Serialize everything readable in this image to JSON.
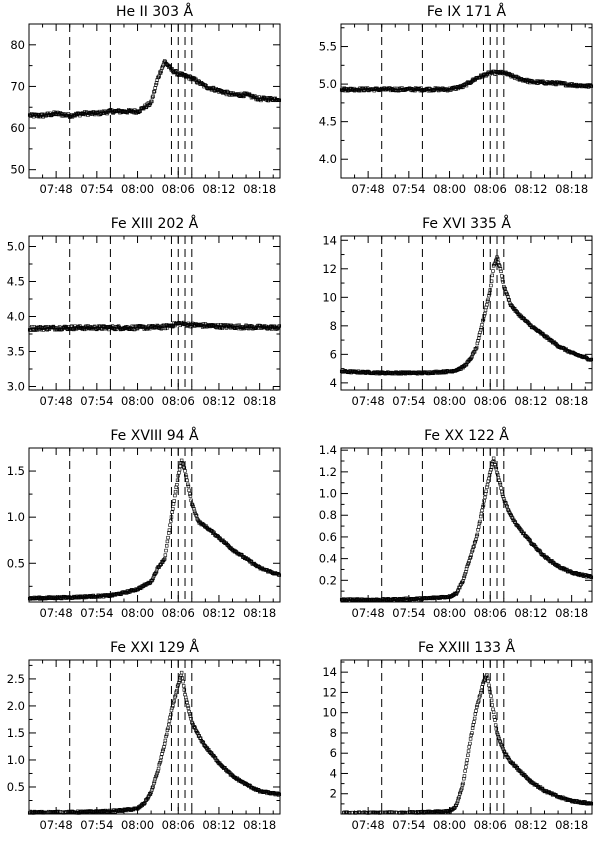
{
  "chart_data": [
    {
      "type": "scatter",
      "title": "He II 303 Å",
      "x_ticks": [
        "07:48",
        "07:54",
        "08:00",
        "08:06",
        "08:12",
        "08:18"
      ],
      "xlim": [
        "07:44",
        "08:21"
      ],
      "ylim": [
        48,
        85
      ],
      "y_ticks": [
        50,
        60,
        70,
        80
      ],
      "y_tick_labels": [
        "50",
        "60",
        "70",
        "80"
      ],
      "dashed_lines": [
        "07:50",
        "07:56",
        "08:05",
        "08:06",
        "08:07",
        "08:08"
      ],
      "series": [
        {
          "x": [
            "07:44",
            "07:46",
            "07:48",
            "07:50",
            "07:52",
            "07:54",
            "07:56",
            "07:58",
            "08:00",
            "08:02",
            "08:03",
            "08:04",
            "08:05",
            "08:06",
            "08:07",
            "08:08",
            "08:09",
            "08:10",
            "08:12",
            "08:14",
            "08:16",
            "08:18",
            "08:20",
            "08:21"
          ],
          "y": [
            63,
            63,
            63.5,
            63,
            63.5,
            63.5,
            64,
            64,
            64,
            66,
            72,
            76,
            74,
            73,
            72.5,
            72,
            71,
            70,
            69,
            68,
            68,
            67,
            67,
            67
          ]
        }
      ]
    },
    {
      "type": "scatter",
      "title": "Fe IX 171 Å",
      "x_ticks": [
        "07:48",
        "07:54",
        "08:00",
        "08:06",
        "08:12",
        "08:18"
      ],
      "xlim": [
        "07:44",
        "08:21"
      ],
      "ylim": [
        3.75,
        5.8
      ],
      "y_ticks": [
        4.0,
        4.5,
        5.0,
        5.5
      ],
      "y_tick_labels": [
        "4.0",
        "4.5",
        "5.0",
        "5.5"
      ],
      "dashed_lines": [
        "07:50",
        "07:56",
        "08:05",
        "08:06",
        "08:07",
        "08:08"
      ],
      "series": [
        {
          "x": [
            "07:44",
            "07:48",
            "07:52",
            "07:56",
            "08:00",
            "08:02",
            "08:04",
            "08:06",
            "08:08",
            "08:10",
            "08:12",
            "08:14",
            "08:16",
            "08:18",
            "08:21"
          ],
          "y": [
            4.93,
            4.93,
            4.93,
            4.93,
            4.93,
            4.97,
            5.08,
            5.15,
            5.15,
            5.08,
            5.03,
            5.02,
            5.01,
            4.99,
            4.97
          ]
        }
      ]
    },
    {
      "type": "scatter",
      "title": "Fe XIII 202 Å",
      "x_ticks": [
        "07:48",
        "07:54",
        "08:00",
        "08:06",
        "08:12",
        "08:18"
      ],
      "xlim": [
        "07:44",
        "08:21"
      ],
      "ylim": [
        2.95,
        5.15
      ],
      "y_ticks": [
        3.0,
        3.5,
        4.0,
        4.5,
        5.0
      ],
      "y_tick_labels": [
        "3.0",
        "3.5",
        "4.0",
        "4.5",
        "5.0"
      ],
      "dashed_lines": [
        "07:50",
        "07:56",
        "08:05",
        "08:06",
        "08:07",
        "08:08"
      ],
      "series": [
        {
          "x": [
            "07:44",
            "07:50",
            "07:56",
            "08:00",
            "08:04",
            "08:06",
            "08:08",
            "08:12",
            "08:16",
            "08:21"
          ],
          "y": [
            3.83,
            3.84,
            3.84,
            3.84,
            3.85,
            3.9,
            3.88,
            3.86,
            3.85,
            3.84
          ]
        }
      ]
    },
    {
      "type": "scatter",
      "title": "Fe XVI 335 Å",
      "x_ticks": [
        "07:48",
        "07:54",
        "08:00",
        "08:06",
        "08:12",
        "08:18"
      ],
      "xlim": [
        "07:44",
        "08:21"
      ],
      "ylim": [
        3.5,
        14.3
      ],
      "y_ticks": [
        4,
        6,
        8,
        10,
        12,
        14
      ],
      "y_tick_labels": [
        "4",
        "6",
        "8",
        "10",
        "12",
        "14"
      ],
      "dashed_lines": [
        "07:50",
        "07:56",
        "08:05",
        "08:06",
        "08:07",
        "08:08"
      ],
      "series": [
        {
          "x": [
            "07:44",
            "07:50",
            "07:56",
            "08:00",
            "08:01",
            "08:02",
            "08:03",
            "08:04",
            "08:05",
            "08:06",
            "08:06:30",
            "08:07",
            "08:07:30",
            "08:08",
            "08:09",
            "08:10",
            "08:12",
            "08:14",
            "08:16",
            "08:18",
            "08:21"
          ],
          "y": [
            4.8,
            4.7,
            4.7,
            4.8,
            4.9,
            5.1,
            5.6,
            6.5,
            8.5,
            10.5,
            12.2,
            12.8,
            12,
            10.8,
            9.5,
            8.9,
            8,
            7.3,
            6.6,
            6.1,
            5.6
          ]
        }
      ]
    },
    {
      "type": "scatter",
      "title": "Fe XVIII 94 Å",
      "x_ticks": [
        "07:48",
        "07:54",
        "08:00",
        "08:06",
        "08:12",
        "08:18"
      ],
      "xlim": [
        "07:44",
        "08:21"
      ],
      "ylim": [
        0.08,
        1.75
      ],
      "y_ticks": [
        0.5,
        1.0,
        1.5
      ],
      "y_tick_labels": [
        "0.5",
        "1.0",
        "1.5"
      ],
      "dashed_lines": [
        "07:50",
        "07:56",
        "08:05",
        "08:06",
        "08:07",
        "08:08"
      ],
      "series": [
        {
          "x": [
            "07:44",
            "07:50",
            "07:56",
            "07:58",
            "08:00",
            "08:02",
            "08:03",
            "08:04",
            "08:05",
            "08:06",
            "08:06:30",
            "08:07",
            "08:08",
            "08:09",
            "08:10",
            "08:12",
            "08:14",
            "08:16",
            "08:18",
            "08:21"
          ],
          "y": [
            0.12,
            0.13,
            0.15,
            0.18,
            0.22,
            0.3,
            0.45,
            0.55,
            1.0,
            1.45,
            1.62,
            1.5,
            1.15,
            0.95,
            0.9,
            0.78,
            0.65,
            0.55,
            0.45,
            0.37
          ]
        }
      ]
    },
    {
      "type": "scatter",
      "title": "Fe XX 122 Å",
      "x_ticks": [
        "07:48",
        "07:54",
        "08:00",
        "08:06",
        "08:12",
        "08:18"
      ],
      "xlim": [
        "07:44",
        "08:21"
      ],
      "ylim": [
        0,
        1.42
      ],
      "y_ticks": [
        0.2,
        0.4,
        0.6,
        0.8,
        1.0,
        1.2,
        1.4
      ],
      "y_tick_labels": [
        "0.2",
        "0.4",
        "0.6",
        "0.8",
        "1.0",
        "1.2",
        "1.4"
      ],
      "dashed_lines": [
        "07:50",
        "07:56",
        "08:05",
        "08:06",
        "08:07",
        "08:08"
      ],
      "series": [
        {
          "x": [
            "07:44",
            "07:50",
            "07:56",
            "08:00",
            "08:01",
            "08:02",
            "08:03",
            "08:04",
            "08:05",
            "08:06",
            "08:06:30",
            "08:07",
            "08:08",
            "08:09",
            "08:10",
            "08:12",
            "08:14",
            "08:16",
            "08:18",
            "08:21"
          ],
          "y": [
            0.02,
            0.02,
            0.03,
            0.05,
            0.08,
            0.2,
            0.4,
            0.6,
            0.9,
            1.2,
            1.32,
            1.2,
            0.95,
            0.8,
            0.7,
            0.55,
            0.42,
            0.33,
            0.27,
            0.23
          ]
        }
      ]
    },
    {
      "type": "scatter",
      "title": "Fe XXI 129 Å",
      "x_ticks": [
        "07:48",
        "07:54",
        "08:00",
        "08:06",
        "08:12",
        "08:18"
      ],
      "xlim": [
        "07:44",
        "08:21"
      ],
      "ylim": [
        0,
        2.85
      ],
      "y_ticks": [
        0.5,
        1.0,
        1.5,
        2.0,
        2.5
      ],
      "y_tick_labels": [
        "0.5",
        "1.0",
        "1.5",
        "2.0",
        "2.5"
      ],
      "dashed_lines": [
        "07:50",
        "07:56",
        "08:05",
        "08:06",
        "08:07",
        "08:08"
      ],
      "series": [
        {
          "x": [
            "07:44",
            "07:50",
            "07:56",
            "07:58",
            "08:00",
            "08:01",
            "08:02",
            "08:03",
            "08:04",
            "08:05",
            "08:06",
            "08:06:30",
            "08:07",
            "08:08",
            "08:09",
            "08:10",
            "08:12",
            "08:14",
            "08:16",
            "08:18",
            "08:21"
          ],
          "y": [
            0.03,
            0.03,
            0.05,
            0.07,
            0.1,
            0.2,
            0.4,
            0.8,
            1.3,
            1.9,
            2.4,
            2.6,
            2.2,
            1.7,
            1.45,
            1.25,
            0.95,
            0.7,
            0.55,
            0.42,
            0.36
          ]
        }
      ]
    },
    {
      "type": "scatter",
      "title": "Fe XXIII 133 Å",
      "x_ticks": [
        "07:48",
        "07:54",
        "08:00",
        "08:06",
        "08:12",
        "08:18"
      ],
      "xlim": [
        "07:44",
        "08:21"
      ],
      "ylim": [
        0,
        15.2
      ],
      "y_ticks": [
        2,
        4,
        6,
        8,
        10,
        12,
        14
      ],
      "y_tick_labels": [
        "2",
        "4",
        "6",
        "8",
        "10",
        "12",
        "14"
      ],
      "dashed_lines": [
        "07:50",
        "07:56",
        "08:05",
        "08:06",
        "08:07",
        "08:08"
      ],
      "series": [
        {
          "x": [
            "07:44",
            "07:50",
            "07:56",
            "08:00",
            "08:01",
            "08:02",
            "08:03",
            "08:04",
            "08:05",
            "08:05:30",
            "08:06",
            "08:07",
            "08:08",
            "08:09",
            "08:10",
            "08:12",
            "08:14",
            "08:16",
            "08:18",
            "08:21"
          ],
          "y": [
            0.1,
            0.1,
            0.15,
            0.25,
            0.8,
            3,
            7,
            10.5,
            13,
            13.7,
            12,
            8,
            6.2,
            5.2,
            4.5,
            3.2,
            2.3,
            1.7,
            1.3,
            1.0
          ]
        }
      ]
    }
  ]
}
